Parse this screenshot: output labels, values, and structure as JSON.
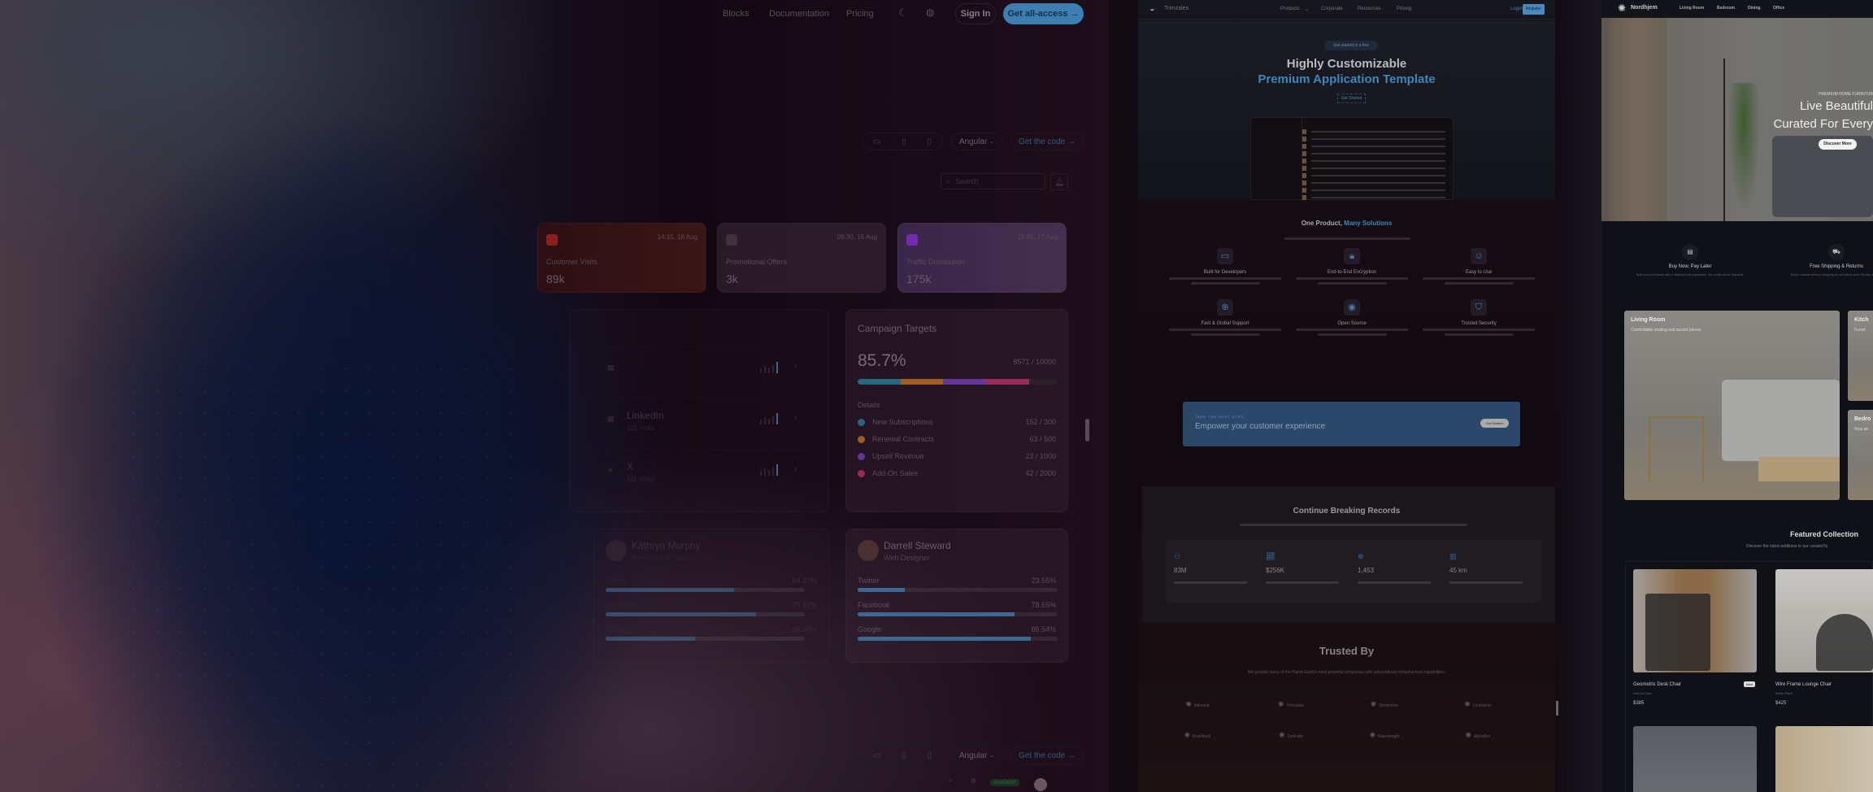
{
  "dashboard": {
    "nav": {
      "links": [
        "Blocks",
        "Documentation",
        "Pricing"
      ],
      "theme_icon": "moon-icon",
      "palette_icon": "palette-icon",
      "sign_in": "Sign In",
      "get_all_access": "Get all-access →"
    },
    "toolbar": {
      "devices": [
        "desktop-icon",
        "tablet-icon",
        "mobile-icon"
      ],
      "framework": "Angular",
      "get_code": "Get the code →"
    },
    "search": {
      "placeholder": "Search"
    },
    "stat_cards": [
      {
        "time": "14:15, 18 Aug",
        "label": "Customer Visits",
        "value": "89k",
        "color": "#b3261e"
      },
      {
        "time": "09:30, 16 Aug",
        "label": "Promotional Offers",
        "value": "3k",
        "color": "#4a3a48"
      },
      {
        "time": "16:45, 17 Aug",
        "label": "Traffic Distribution",
        "value": "175k",
        "color": "#8a2be2"
      }
    ],
    "channels": [
      {
        "name": "",
        "visits": ""
      },
      {
        "name": "LinkedIn",
        "visits": "112 Visits"
      },
      {
        "name": "X",
        "visits": "511 Visits"
      }
    ],
    "campaign": {
      "title": "Campaign Targets",
      "percent": "85.7%",
      "progress": 85.7,
      "count": "8571 / 10000",
      "details_label": "Details",
      "items": [
        {
          "label": "New Subscriptions",
          "value": "152 / 300",
          "color": "#2a7f9e"
        },
        {
          "label": "Renewal Contracts",
          "value": "63 / 500",
          "color": "#c8741e"
        },
        {
          "label": "Upsell Revenue",
          "value": "23 / 1000",
          "color": "#7b3fbf"
        },
        {
          "label": "Add-On Sales",
          "value": "42 / 2000",
          "color": "#c2306a"
        }
      ]
    },
    "people": [
      {
        "name": "Kathryn Murphy",
        "role": "President of Sales",
        "stats": [
          {
            "label": "Twitter",
            "value": "64.47%",
            "pct": 64.47
          },
          {
            "label": "Facebook",
            "value": "75.47%",
            "pct": 75.47
          },
          {
            "label": "Google",
            "value": "45.00%",
            "pct": 45
          }
        ]
      },
      {
        "name": "Darrell Steward",
        "role": "Web Designer",
        "stats": [
          {
            "label": "Twitter",
            "value": "23.55%",
            "pct": 23.55
          },
          {
            "label": "Facebook",
            "value": "78.65%",
            "pct": 78.65
          },
          {
            "label": "Google",
            "value": "86.54%",
            "pct": 86.54
          }
        ]
      }
    ],
    "toolbar2": {
      "framework": "Angular",
      "get_code": "Get the code →",
      "status": "Available"
    }
  },
  "trimzales": {
    "brand": "Trimzales",
    "nav": [
      "Products",
      "Corporate",
      "Resources",
      "Pricing"
    ],
    "login": "Login",
    "register": "Register",
    "badge": "Get started in a few",
    "hero_title": "Highly Customizable",
    "hero_accent": "Premium Application Template",
    "hero_cta": "Get Started",
    "section_title": "One Product, ",
    "section_accent": "Many Solutions",
    "features": [
      {
        "icon": "monitor-icon",
        "title": "Built for Developers"
      },
      {
        "icon": "lock-icon",
        "title": "End-to-End Encryption"
      },
      {
        "icon": "smile-icon",
        "title": "Easy to Use"
      },
      {
        "icon": "globe-icon",
        "title": "Fast & Global Support"
      },
      {
        "icon": "github-icon",
        "title": "Open Source"
      },
      {
        "icon": "shield-icon",
        "title": "Trusted Security"
      }
    ],
    "cta": {
      "eyebrow": "TAKE THE NEXT STEP",
      "title": "Empower your customer experience",
      "button": "Get Started"
    },
    "records": {
      "title": "Continue Breaking Records",
      "stats": [
        {
          "icon": "users-icon",
          "value": "83M"
        },
        {
          "icon": "chart-icon",
          "value": "$256K"
        },
        {
          "icon": "globe-icon",
          "value": "1,453"
        },
        {
          "icon": "map-icon",
          "value": "45 km"
        }
      ]
    },
    "trusted": {
      "title": "Trusted By",
      "subtitle": "We provide many of the Planet Earth's most powerful companies with extraordinary infrastructural capabilities.",
      "logos": [
        "Nitmana",
        "Trimzales",
        "Streamline",
        "Limenentz",
        "Brainflash",
        "Zentratis",
        "Wavelength",
        "Alphaflex"
      ]
    }
  },
  "nordhjem": {
    "brand": "Nordhjem",
    "nav": [
      "Living Room",
      "Bedroom",
      "Dining",
      "Office"
    ],
    "hero": {
      "eyebrow": "PREMIUM HOME FURNITUR",
      "line1": "Live Beautiful",
      "line2": "Curated For Every",
      "cta": "Discover More"
    },
    "perks": [
      {
        "icon": "calendar-icon",
        "title": "Buy Now, Pay Later",
        "desc": "Split your purchase into 4 interest-free payments. No credit check required."
      },
      {
        "icon": "truck-icon",
        "title": "Free Shipping & Returns",
        "desc": "Enjoy complimentary shipping on all orders plus 30-day returns."
      }
    ],
    "categories": [
      {
        "title": "Living Room",
        "desc": "Comfortable seating and accent pieces"
      },
      {
        "title": "Kitch",
        "desc": "Functi"
      },
      {
        "title": "Bedro",
        "desc": "Rest an"
      }
    ],
    "featured": {
      "title": "Featured Collection",
      "subtitle": "Discover the latest additions to our curated fu"
    },
    "products": [
      {
        "name": "Geometric Desk Chair",
        "material": "Natural Cane",
        "price": "$385",
        "badge": "New"
      },
      {
        "name": "Wire Frame Lounge Chair",
        "material": "Matte Black",
        "price": "$425"
      }
    ]
  }
}
